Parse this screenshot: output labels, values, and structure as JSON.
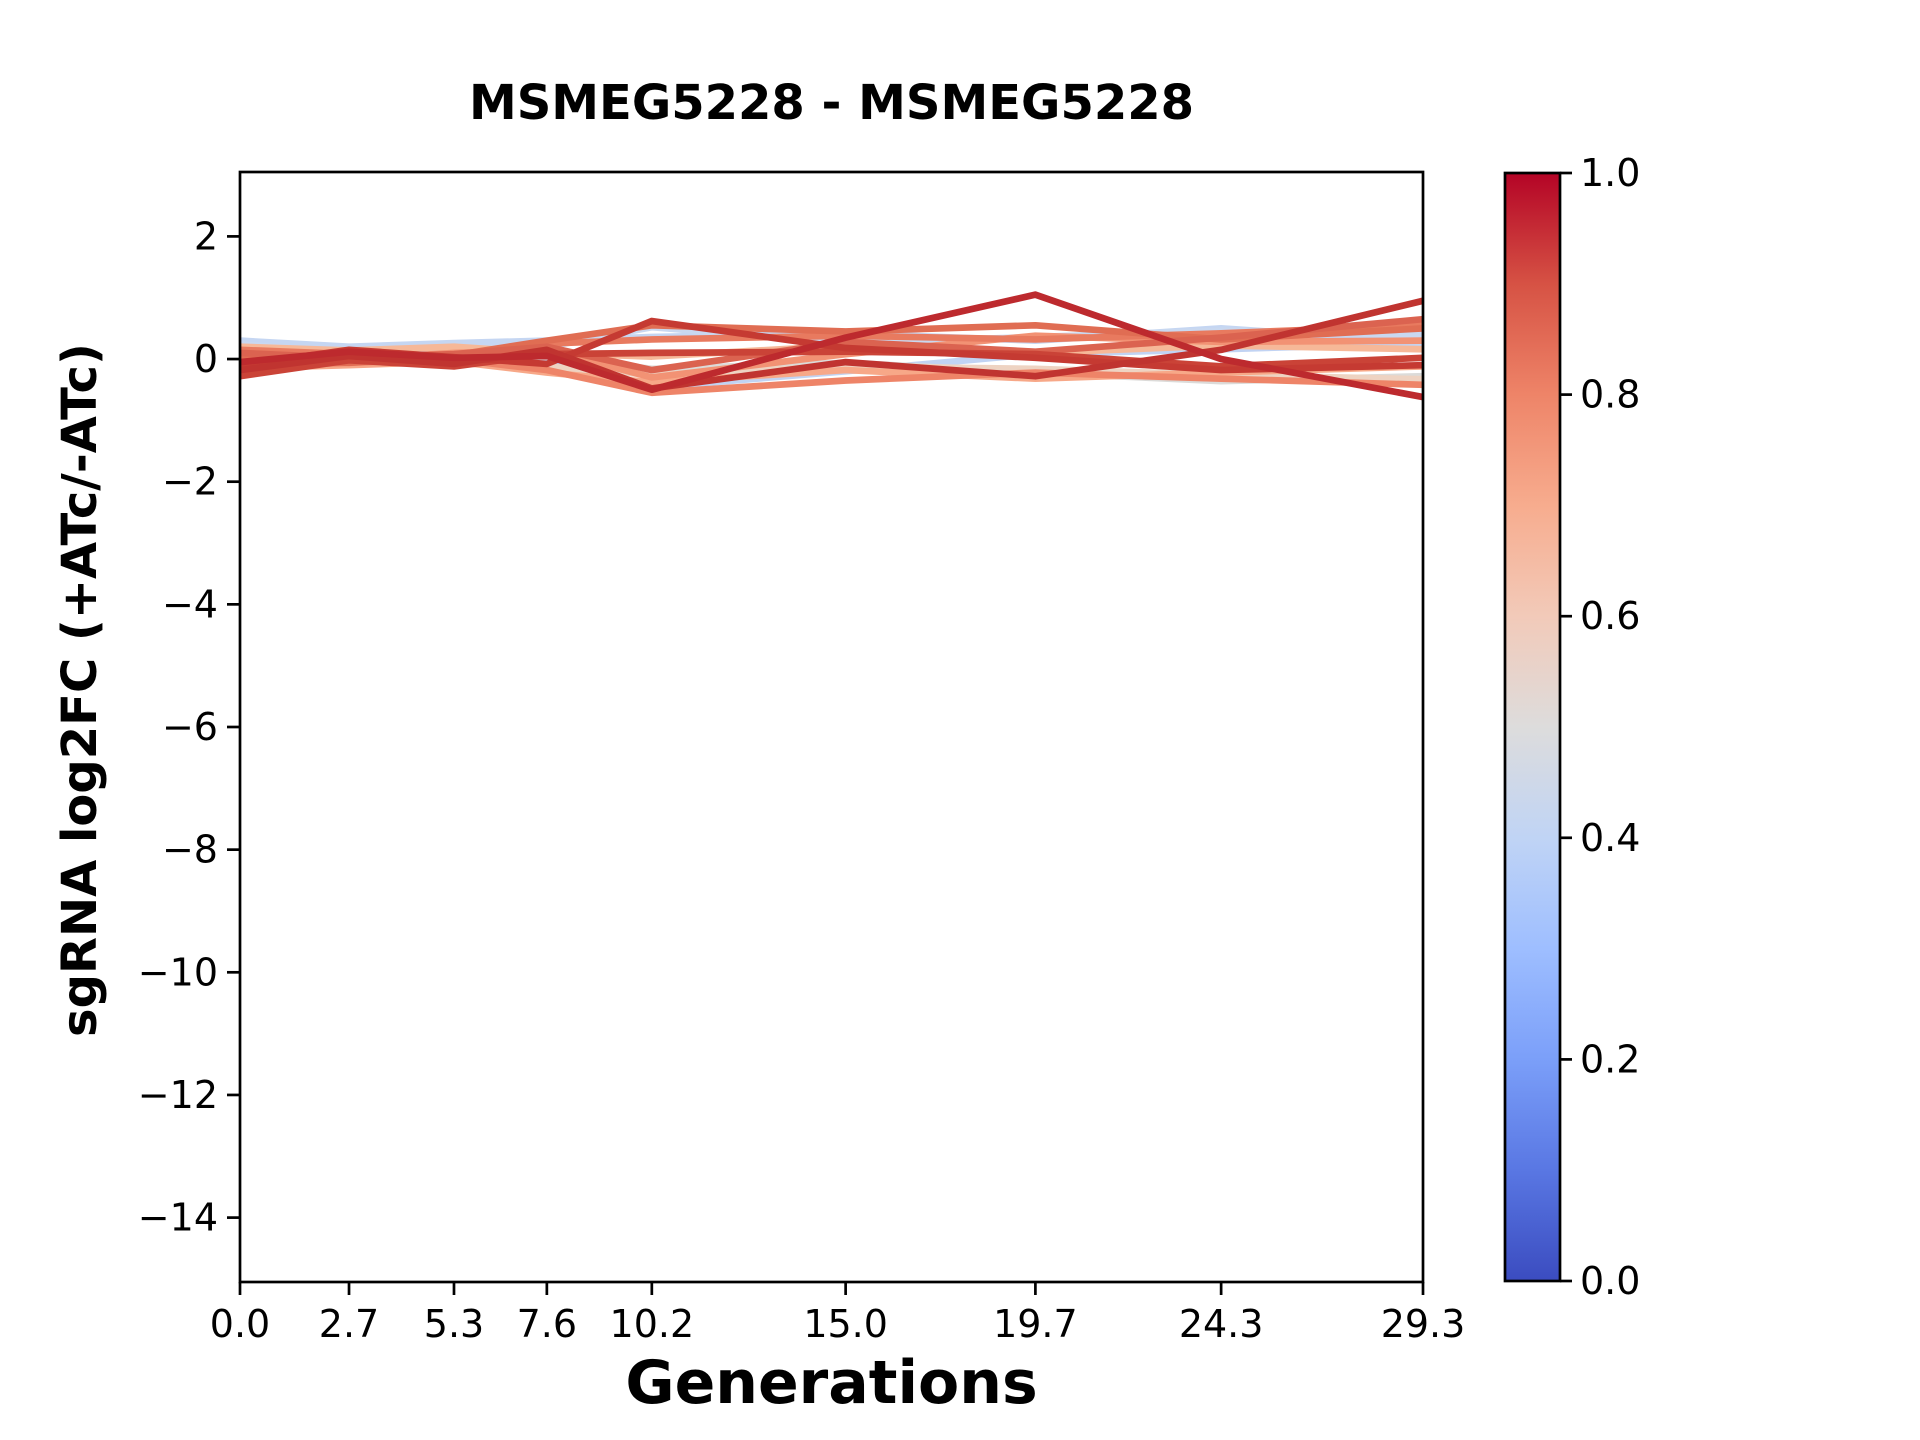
{
  "figure": {
    "title": "MSMEG5228 - MSMEG5228",
    "background_color": "#ffffff",
    "text_color": "#000000"
  },
  "chart_data": {
    "type": "line",
    "title": "MSMEG5228 - MSMEG5228",
    "xlabel": "Generations",
    "ylabel": "sgRNA log2FC (+ATc/-ATc)",
    "grid": false,
    "legend": "none (colorbar on right)",
    "xlim": [
      0.0,
      29.3
    ],
    "ylim": [
      -15.05,
      3.05
    ],
    "x": [
      0.0,
      2.7,
      5.3,
      7.6,
      10.2,
      15.0,
      19.7,
      24.3,
      29.3
    ],
    "xtick_labels": [
      "0.0",
      "2.7",
      "5.3",
      "7.6",
      "10.2",
      "15.0",
      "19.7",
      "24.3",
      "29.3"
    ],
    "yticks": [
      2,
      0,
      -2,
      -4,
      -6,
      -8,
      -10,
      -12,
      -14
    ],
    "ytick_labels": [
      "2",
      "0",
      "−2",
      "−4",
      "−6",
      "−8",
      "−10",
      "−12",
      "−14"
    ],
    "series": [
      {
        "name": "line-01",
        "color_value": 0.38,
        "color": "#c1d3f3",
        "values": [
          0.18,
          0.14,
          0.08,
          0.0,
          -0.46,
          -0.2,
          0.08,
          0.16,
          0.26
        ]
      },
      {
        "name": "line-02",
        "color_value": 0.4,
        "color": "#c5d6f2",
        "values": [
          0.3,
          0.2,
          0.26,
          0.3,
          0.36,
          0.42,
          0.3,
          0.5,
          0.28
        ]
      },
      {
        "name": "line-03",
        "color_value": 0.42,
        "color": "#c9d8f0",
        "values": [
          0.24,
          0.1,
          0.16,
          0.2,
          0.52,
          0.26,
          0.36,
          0.46,
          0.4
        ]
      },
      {
        "name": "line-04",
        "color_value": 0.5,
        "color": "#dcdbd9",
        "values": [
          0.08,
          0.04,
          0.0,
          0.04,
          -0.16,
          -0.06,
          -0.22,
          -0.36,
          -0.28
        ]
      },
      {
        "name": "line-05",
        "color_value": 0.58,
        "color": "#eed3c2",
        "values": [
          -0.06,
          0.0,
          0.06,
          -0.12,
          -0.26,
          -0.12,
          -0.16,
          -0.26,
          -0.33
        ]
      },
      {
        "name": "line-06",
        "color_value": 0.65,
        "color": "#f6b898",
        "values": [
          0.2,
          0.14,
          0.2,
          0.1,
          0.04,
          0.22,
          0.1,
          0.22,
          0.16
        ]
      },
      {
        "name": "line-07",
        "color_value": 0.7,
        "color": "#f7a888",
        "values": [
          -0.15,
          -0.1,
          -0.04,
          -0.22,
          -0.38,
          -0.18,
          -0.32,
          -0.22,
          -0.12
        ]
      },
      {
        "name": "line-08",
        "color_value": 0.75,
        "color": "#f29274",
        "values": [
          0.05,
          0.0,
          0.1,
          0.15,
          -0.3,
          0.08,
          0.38,
          0.28,
          0.3
        ]
      },
      {
        "name": "line-09",
        "color_value": 0.8,
        "color": "#ee8468",
        "values": [
          -0.12,
          -0.06,
          0.0,
          -0.18,
          -0.55,
          -0.35,
          -0.22,
          -0.32,
          -0.42
        ]
      },
      {
        "name": "line-10",
        "color_value": 0.82,
        "color": "#e87a5f",
        "values": [
          0.15,
          0.08,
          0.03,
          0.25,
          0.32,
          0.38,
          0.32,
          0.42,
          0.55
        ]
      },
      {
        "name": "line-11",
        "color_value": 0.85,
        "color": "#e06d53",
        "values": [
          0.0,
          -0.06,
          0.06,
          0.3,
          0.55,
          0.45,
          0.55,
          0.32,
          0.5
        ]
      },
      {
        "name": "line-12",
        "color_value": 0.87,
        "color": "#db6350",
        "values": [
          0.1,
          0.02,
          0.08,
          0.2,
          -0.18,
          0.28,
          0.12,
          0.35,
          0.65
        ]
      },
      {
        "name": "line-13",
        "color_value": 0.93,
        "color": "#ca4337",
        "values": [
          -0.28,
          -0.02,
          -0.12,
          0.08,
          0.1,
          0.12,
          0.08,
          -0.12,
          0.02
        ]
      },
      {
        "name": "line-14",
        "color_value": 0.95,
        "color": "#c53a32",
        "values": [
          -0.1,
          0.15,
          0.03,
          -0.08,
          0.62,
          0.18,
          0.02,
          -0.18,
          -0.1
        ]
      },
      {
        "name": "line-15",
        "color_value": 0.97,
        "color": "#c03430",
        "values": [
          -0.18,
          0.05,
          -0.08,
          0.15,
          -0.48,
          -0.05,
          -0.28,
          0.15,
          0.95
        ]
      },
      {
        "name": "line-16",
        "color_value": 1.0,
        "color": "#bd2a2e",
        "values": [
          -0.05,
          0.12,
          0.02,
          0.05,
          -0.5,
          0.35,
          1.05,
          0.0,
          -0.62
        ]
      }
    ],
    "colorbar": {
      "min": 0.0,
      "max": 1.0,
      "ticks": [
        0.0,
        0.2,
        0.4,
        0.6,
        0.8,
        1.0
      ],
      "tick_labels": [
        "0.0",
        "0.2",
        "0.4",
        "0.6",
        "0.8",
        "1.0"
      ],
      "colormap": "coolwarm",
      "gradient_stops": [
        {
          "t": 0.0,
          "color": "#3b4cc0"
        },
        {
          "t": 0.1,
          "color": "#5977e3"
        },
        {
          "t": 0.2,
          "color": "#7b9ff9"
        },
        {
          "t": 0.3,
          "color": "#9ebeff"
        },
        {
          "t": 0.4,
          "color": "#c0d4f5"
        },
        {
          "t": 0.5,
          "color": "#dddcdc"
        },
        {
          "t": 0.6,
          "color": "#f2cab9"
        },
        {
          "t": 0.7,
          "color": "#f7ac8e"
        },
        {
          "t": 0.8,
          "color": "#ee8468"
        },
        {
          "t": 0.9,
          "color": "#d65244"
        },
        {
          "t": 1.0,
          "color": "#b40426"
        }
      ]
    }
  }
}
